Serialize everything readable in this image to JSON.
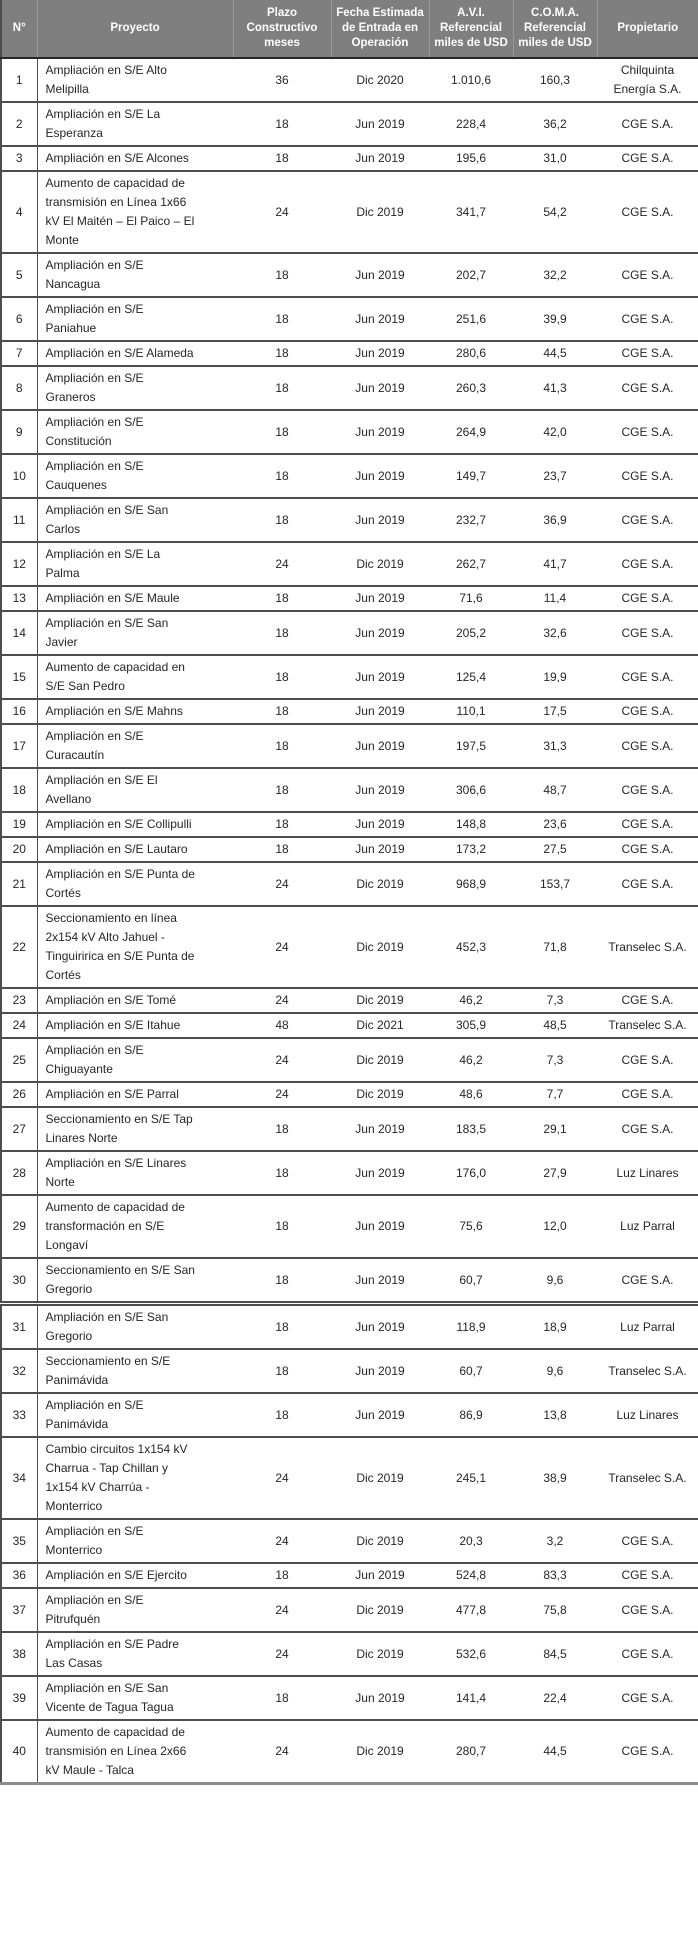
{
  "colors": {
    "header_bg": "#7f7f7f",
    "header_text": "#ffffff",
    "body_text": "#262626",
    "row_border": "#4d4d4d"
  },
  "table": {
    "page_break_before_row": 31,
    "columns": [
      {
        "key": "n",
        "label": "N°"
      },
      {
        "key": "proyecto",
        "label": "Proyecto"
      },
      {
        "key": "plazo",
        "label": "Plazo Constructivo meses"
      },
      {
        "key": "fecha",
        "label": "Fecha Estimada de Entrada en Operación"
      },
      {
        "key": "avi",
        "label": "A.V.I. Referencial miles de USD"
      },
      {
        "key": "coma",
        "label": "C.O.M.A. Referencial miles de USD"
      },
      {
        "key": "propietario",
        "label": "Propietario"
      }
    ],
    "rows": [
      {
        "n": "1",
        "proyecto": "Ampliación en S/E Alto Melipilla",
        "plazo": "36",
        "fecha": "Dic 2020",
        "avi": "1.010,6",
        "coma": "160,3",
        "propietario": "Chilquinta Energía S.A."
      },
      {
        "n": "2",
        "proyecto": "Ampliación en S/E La Esperanza",
        "plazo": "18",
        "fecha": "Jun 2019",
        "avi": "228,4",
        "coma": "36,2",
        "propietario": "CGE S.A."
      },
      {
        "n": "3",
        "proyecto": "Ampliación en S/E Alcones",
        "plazo": "18",
        "fecha": "Jun 2019",
        "avi": "195,6",
        "coma": "31,0",
        "propietario": "CGE S.A."
      },
      {
        "n": "4",
        "proyecto": "Aumento de capacidad de transmisión en Línea 1x66 kV El Maitén – El Paico – El Monte",
        "plazo": "24",
        "fecha": "Dic 2019",
        "avi": "341,7",
        "coma": "54,2",
        "propietario": "CGE S.A."
      },
      {
        "n": "5",
        "proyecto": "Ampliación en S/E Nancagua",
        "plazo": "18",
        "fecha": "Jun 2019",
        "avi": "202,7",
        "coma": "32,2",
        "propietario": "CGE S.A."
      },
      {
        "n": "6",
        "proyecto": "Ampliación en S/E Paniahue",
        "plazo": "18",
        "fecha": "Jun 2019",
        "avi": "251,6",
        "coma": "39,9",
        "propietario": "CGE S.A."
      },
      {
        "n": "7",
        "proyecto": "Ampliación en S/E Alameda",
        "plazo": "18",
        "fecha": "Jun 2019",
        "avi": "280,6",
        "coma": "44,5",
        "propietario": "CGE S.A."
      },
      {
        "n": "8",
        "proyecto": "Ampliación en S/E Graneros",
        "plazo": "18",
        "fecha": "Jun 2019",
        "avi": "260,3",
        "coma": "41,3",
        "propietario": "CGE S.A."
      },
      {
        "n": "9",
        "proyecto": "Ampliación en S/E Constitución",
        "plazo": "18",
        "fecha": "Jun 2019",
        "avi": "264,9",
        "coma": "42,0",
        "propietario": "CGE S.A."
      },
      {
        "n": "10",
        "proyecto": "Ampliación en S/E Cauquenes",
        "plazo": "18",
        "fecha": "Jun 2019",
        "avi": "149,7",
        "coma": "23,7",
        "propietario": "CGE S.A."
      },
      {
        "n": "11",
        "proyecto": "Ampliación en S/E San Carlos",
        "plazo": "18",
        "fecha": "Jun 2019",
        "avi": "232,7",
        "coma": "36,9",
        "propietario": "CGE S.A."
      },
      {
        "n": "12",
        "proyecto": "Ampliación en S/E La Palma",
        "plazo": "24",
        "fecha": "Dic 2019",
        "avi": "262,7",
        "coma": "41,7",
        "propietario": "CGE S.A."
      },
      {
        "n": "13",
        "proyecto": "Ampliación en S/E Maule",
        "plazo": "18",
        "fecha": "Jun 2019",
        "avi": "71,6",
        "coma": "11,4",
        "propietario": "CGE S.A."
      },
      {
        "n": "14",
        "proyecto": "Ampliación en S/E San Javier",
        "plazo": "18",
        "fecha": "Jun 2019",
        "avi": "205,2",
        "coma": "32,6",
        "propietario": "CGE S.A."
      },
      {
        "n": "15",
        "proyecto": "Aumento de capacidad en S/E San Pedro",
        "plazo": "18",
        "fecha": "Jun 2019",
        "avi": "125,4",
        "coma": "19,9",
        "propietario": "CGE S.A."
      },
      {
        "n": "16",
        "proyecto": "Ampliación en S/E Mahns",
        "plazo": "18",
        "fecha": "Jun 2019",
        "avi": "110,1",
        "coma": "17,5",
        "propietario": "CGE S.A."
      },
      {
        "n": "17",
        "proyecto": "Ampliación en S/E Curacautín",
        "plazo": "18",
        "fecha": "Jun 2019",
        "avi": "197,5",
        "coma": "31,3",
        "propietario": "CGE S.A."
      },
      {
        "n": "18",
        "proyecto": "Ampliación en S/E El Avellano",
        "plazo": "18",
        "fecha": "Jun 2019",
        "avi": "306,6",
        "coma": "48,7",
        "propietario": "CGE S.A."
      },
      {
        "n": "19",
        "proyecto": "Ampliación en S/E Collipulli",
        "plazo": "18",
        "fecha": "Jun 2019",
        "avi": "148,8",
        "coma": "23,6",
        "propietario": "CGE S.A."
      },
      {
        "n": "20",
        "proyecto": "Ampliación en S/E Lautaro",
        "plazo": "18",
        "fecha": "Jun 2019",
        "avi": "173,2",
        "coma": "27,5",
        "propietario": "CGE S.A."
      },
      {
        "n": "21",
        "proyecto": "Ampliación en S/E Punta de Cortés",
        "plazo": "24",
        "fecha": "Dic 2019",
        "avi": "968,9",
        "coma": "153,7",
        "propietario": "CGE S.A."
      },
      {
        "n": "22",
        "proyecto": "Seccionamiento en línea 2x154 kV Alto Jahuel - Tinguiririca en S/E Punta de Cortés",
        "plazo": "24",
        "fecha": "Dic 2019",
        "avi": "452,3",
        "coma": "71,8",
        "propietario": "Transelec S.A."
      },
      {
        "n": "23",
        "proyecto": "Ampliación en S/E Tomé",
        "plazo": "24",
        "fecha": "Dic 2019",
        "avi": "46,2",
        "coma": "7,3",
        "propietario": "CGE S.A."
      },
      {
        "n": "24",
        "proyecto": "Ampliación en S/E Itahue",
        "plazo": "48",
        "fecha": "Dic 2021",
        "avi": "305,9",
        "coma": "48,5",
        "propietario": "Transelec S.A."
      },
      {
        "n": "25",
        "proyecto": "Ampliación en S/E Chiguayante",
        "plazo": "24",
        "fecha": "Dic 2019",
        "avi": "46,2",
        "coma": "7,3",
        "propietario": "CGE S.A."
      },
      {
        "n": "26",
        "proyecto": "Ampliación en S/E Parral",
        "plazo": "24",
        "fecha": "Dic 2019",
        "avi": "48,6",
        "coma": "7,7",
        "propietario": "CGE S.A."
      },
      {
        "n": "27",
        "proyecto": "Seccionamiento en S/E Tap Linares Norte",
        "plazo": "18",
        "fecha": "Jun 2019",
        "avi": "183,5",
        "coma": "29,1",
        "propietario": "CGE S.A."
      },
      {
        "n": "28",
        "proyecto": "Ampliación en S/E Linares Norte",
        "plazo": "18",
        "fecha": "Jun 2019",
        "avi": "176,0",
        "coma": "27,9",
        "propietario": "Luz Linares"
      },
      {
        "n": "29",
        "proyecto": "Aumento de capacidad de transformación en S/E Longaví",
        "plazo": "18",
        "fecha": "Jun 2019",
        "avi": "75,6",
        "coma": "12,0",
        "propietario": "Luz Parral"
      },
      {
        "n": "30",
        "proyecto": "Seccionamiento en S/E San Gregorio",
        "plazo": "18",
        "fecha": "Jun 2019",
        "avi": "60,7",
        "coma": "9,6",
        "propietario": "CGE S.A."
      },
      {
        "n": "31",
        "proyecto": "Ampliación en S/E San Gregorio",
        "plazo": "18",
        "fecha": "Jun 2019",
        "avi": "118,9",
        "coma": "18,9",
        "propietario": "Luz Parral"
      },
      {
        "n": "32",
        "proyecto": "Seccionamiento en S/E Panimávida",
        "plazo": "18",
        "fecha": "Jun 2019",
        "avi": "60,7",
        "coma": "9,6",
        "propietario": "Transelec S.A."
      },
      {
        "n": "33",
        "proyecto": "Ampliación en S/E Panimávida",
        "plazo": "18",
        "fecha": "Jun 2019",
        "avi": "86,9",
        "coma": "13,8",
        "propietario": "Luz Linares"
      },
      {
        "n": "34",
        "proyecto": "Cambio circuitos 1x154 kV Charrua - Tap Chillan y  1x154 kV Charrúa - Monterrico",
        "plazo": "24",
        "fecha": "Dic 2019",
        "avi": "245,1",
        "coma": "38,9",
        "propietario": "Transelec S.A."
      },
      {
        "n": "35",
        "proyecto": "Ampliación en S/E Monterrico",
        "plazo": "24",
        "fecha": "Dic 2019",
        "avi": "20,3",
        "coma": "3,2",
        "propietario": "CGE S.A."
      },
      {
        "n": "36",
        "proyecto": "Ampliación en S/E Ejercito",
        "plazo": "18",
        "fecha": "Jun 2019",
        "avi": "524,8",
        "coma": "83,3",
        "propietario": "CGE S.A."
      },
      {
        "n": "37",
        "proyecto": "Ampliación en S/E Pitrufquén",
        "plazo": "24",
        "fecha": "Dic 2019",
        "avi": "477,8",
        "coma": "75,8",
        "propietario": "CGE S.A."
      },
      {
        "n": "38",
        "proyecto": "Ampliación en S/E Padre Las Casas",
        "plazo": "24",
        "fecha": "Dic 2019",
        "avi": "532,6",
        "coma": "84,5",
        "propietario": "CGE S.A."
      },
      {
        "n": "39",
        "proyecto": "Ampliación en S/E San Vicente de Tagua Tagua",
        "plazo": "18",
        "fecha": "Jun 2019",
        "avi": "141,4",
        "coma": "22,4",
        "propietario": "CGE S.A."
      },
      {
        "n": "40",
        "proyecto": "Aumento de capacidad de transmisión en Línea 2x66 kV Maule - Talca",
        "plazo": "24",
        "fecha": "Dic 2019",
        "avi": "280,7",
        "coma": "44,5",
        "propietario": "CGE S.A."
      }
    ]
  }
}
